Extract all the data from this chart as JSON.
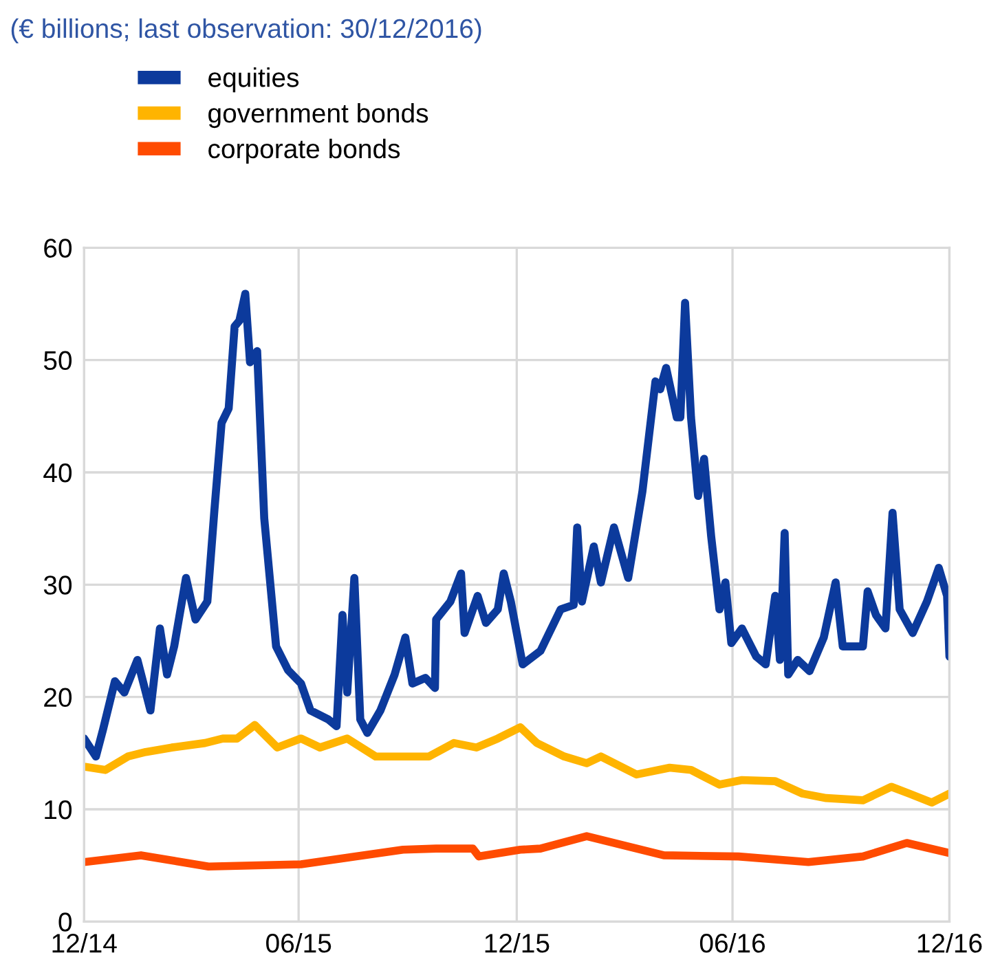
{
  "chart_data": {
    "type": "line",
    "title": "(€ billions; last observation: 30/12/2016)",
    "xlim": [
      "2014-12-31",
      "2016-12-30"
    ],
    "xticks": [
      {
        "value": "2014-12-31",
        "label": "12/14"
      },
      {
        "value": "2015-06-30",
        "label": "06/15"
      },
      {
        "value": "2015-12-31",
        "label": "12/15"
      },
      {
        "value": "2016-06-30",
        "label": "06/16"
      },
      {
        "value": "2016-12-30",
        "label": "12/16"
      }
    ],
    "ylim": [
      0,
      60
    ],
    "yticks": [
      0,
      10,
      20,
      30,
      40,
      50,
      60
    ],
    "grid": true,
    "legend": "top left",
    "marker": "none",
    "line_style": "solid",
    "series": [
      {
        "name": "equities",
        "color": "#0c3a9c",
        "x": [
          "2014-12-31",
          "2015-01-10",
          "2015-01-16",
          "2015-01-26",
          "2015-02-03",
          "2015-02-14",
          "2015-02-25",
          "2015-03-05",
          "2015-03-11",
          "2015-03-17",
          "2015-03-27",
          "2015-04-04",
          "2015-04-14",
          "2015-04-20",
          "2015-04-26",
          "2015-05-02",
          "2015-05-07",
          "2015-05-11",
          "2015-05-16",
          "2015-05-20",
          "2015-05-26",
          "2015-06-01",
          "2015-06-11",
          "2015-06-21",
          "2015-07-02",
          "2015-07-10",
          "2015-07-25",
          "2015-08-01",
          "2015-08-06",
          "2015-08-10",
          "2015-08-16",
          "2015-08-21",
          "2015-08-27",
          "2015-09-07",
          "2015-09-19",
          "2015-09-28",
          "2015-10-04",
          "2015-10-15",
          "2015-10-23",
          "2015-10-24",
          "2015-11-05",
          "2015-11-14",
          "2015-11-17",
          "2015-11-28",
          "2015-12-05",
          "2015-12-15",
          "2015-12-20",
          "2015-12-26",
          "2016-01-05",
          "2016-01-20",
          "2016-02-06",
          "2016-02-17",
          "2016-02-20",
          "2016-02-24",
          "2016-03-05",
          "2016-03-11",
          "2016-03-22",
          "2016-04-03",
          "2016-04-15",
          "2016-04-26",
          "2016-04-30",
          "2016-05-05",
          "2016-05-14",
          "2016-05-17",
          "2016-05-21",
          "2016-05-26",
          "2016-06-01",
          "2016-06-06",
          "2016-06-12",
          "2016-06-19",
          "2016-06-24",
          "2016-06-29",
          "2016-07-08",
          "2016-07-20",
          "2016-07-28",
          "2016-08-05",
          "2016-08-09",
          "2016-08-13",
          "2016-08-16",
          "2016-08-24",
          "2016-09-03",
          "2016-09-15",
          "2016-09-25",
          "2016-10-01",
          "2016-10-18",
          "2016-10-22",
          "2016-10-29",
          "2016-11-06",
          "2016-11-12",
          "2016-11-18",
          "2016-11-29",
          "2016-12-11",
          "2016-12-21",
          "2016-12-28",
          "2016-12-30"
        ],
        "values": [
          16.3,
          14.7,
          17.1,
          21.4,
          20.4,
          23.3,
          18.8,
          26.1,
          22,
          24.5,
          30.6,
          26.9,
          28.5,
          36.7,
          44.4,
          45.7,
          53,
          53.5,
          55.9,
          49.8,
          50.8,
          35.9,
          24.5,
          22.4,
          21.2,
          18.8,
          18,
          17.4,
          27.3,
          20.4,
          30.6,
          18,
          16.8,
          18.8,
          22,
          25.3,
          21.2,
          21.7,
          20.8,
          26.9,
          28.5,
          31,
          25.7,
          29,
          26.6,
          27.8,
          31,
          28.5,
          22.9,
          24.1,
          27.8,
          28.2,
          35.1,
          28.5,
          33.4,
          30.2,
          35.1,
          30.6,
          38.3,
          48.1,
          47.4,
          49.3,
          44.9,
          44.9,
          55.1,
          44.9,
          37.9,
          41.2,
          34.3,
          27.8,
          30.2,
          24.8,
          26.1,
          23.6,
          22.9,
          29,
          23.3,
          34.6,
          22,
          23.3,
          22.3,
          25.3,
          30.2,
          24.5,
          24.5,
          29.4,
          27.3,
          26.1,
          36.4,
          27.8,
          25.7,
          28.5,
          31.5,
          29,
          23.6
        ]
      },
      {
        "name": "government bonds",
        "color": "#ffb400",
        "x": [
          "2014-12-31",
          "2015-01-18",
          "2015-02-06",
          "2015-02-21",
          "2015-03-15",
          "2015-04-12",
          "2015-04-27",
          "2015-05-09",
          "2015-05-24",
          "2015-06-12",
          "2015-07-02",
          "2015-07-18",
          "2015-08-10",
          "2015-09-03",
          "2015-09-26",
          "2015-10-18",
          "2015-11-08",
          "2015-11-27",
          "2015-12-15",
          "2016-01-03",
          "2016-01-17",
          "2016-02-09",
          "2016-02-28",
          "2016-03-11",
          "2016-04-10",
          "2016-05-08",
          "2016-05-26",
          "2016-06-19",
          "2016-07-08",
          "2016-08-05",
          "2016-08-28",
          "2016-09-17",
          "2016-10-18",
          "2016-11-11",
          "2016-11-26",
          "2016-12-15",
          "2016-12-30"
        ],
        "values": [
          13.8,
          13.5,
          14.7,
          15.1,
          15.5,
          15.9,
          16.3,
          16.3,
          17.5,
          15.5,
          16.3,
          15.5,
          16.3,
          14.7,
          14.7,
          14.7,
          15.9,
          15.5,
          16.3,
          17.3,
          15.9,
          14.7,
          14.1,
          14.7,
          13.1,
          13.7,
          13.5,
          12.2,
          12.6,
          12.5,
          11.4,
          11,
          10.8,
          12,
          11.4,
          10.6,
          11.4
        ]
      },
      {
        "name": "corporate bonds",
        "color": "#ff4b00",
        "x": [
          "2014-12-31",
          "2015-02-17",
          "2015-04-15",
          "2015-07-02",
          "2015-09-26",
          "2015-10-24",
          "2015-11-24",
          "2015-11-29",
          "2016-01-03",
          "2016-01-20",
          "2016-02-28",
          "2016-05-03",
          "2016-07-05",
          "2016-09-02",
          "2016-10-18",
          "2016-11-24",
          "2016-12-30"
        ],
        "values": [
          5.3,
          5.9,
          4.9,
          5.1,
          6.4,
          6.5,
          6.5,
          5.8,
          6.4,
          6.5,
          7.6,
          5.9,
          5.8,
          5.3,
          5.8,
          7,
          6.1
        ]
      }
    ]
  }
}
